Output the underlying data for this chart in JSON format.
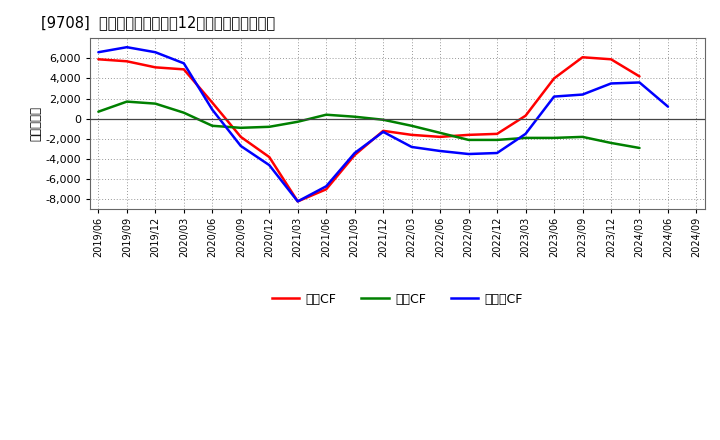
{
  "title": "[9708]  キャッシュフローの12か月移動合計の推移",
  "ylabel": "（百万円）",
  "ylim": [
    -9000,
    8000
  ],
  "yticks": [
    -8000,
    -6000,
    -4000,
    -2000,
    0,
    2000,
    4000,
    6000
  ],
  "background_color": "#ffffff",
  "plot_bg_color": "#ffffff",
  "grid_color": "#999999",
  "x_labels": [
    "2019/06",
    "2019/09",
    "2019/12",
    "2020/03",
    "2020/06",
    "2020/09",
    "2020/12",
    "2021/03",
    "2021/06",
    "2021/09",
    "2021/12",
    "2022/03",
    "2022/06",
    "2022/09",
    "2022/12",
    "2023/03",
    "2023/06",
    "2023/09",
    "2023/12",
    "2024/03",
    "2024/06",
    "2024/09"
  ],
  "series": {
    "営業CF": {
      "color": "#ff0000",
      "values": [
        5900,
        5700,
        5100,
        4900,
        1600,
        -1800,
        -3800,
        -8200,
        -7000,
        -3600,
        -1200,
        -1600,
        -1800,
        -1600,
        -1500,
        300,
        4000,
        6100,
        5900,
        4200,
        null,
        null
      ]
    },
    "投資CF": {
      "color": "#008000",
      "values": [
        700,
        1700,
        1500,
        600,
        -700,
        -900,
        -800,
        -300,
        400,
        200,
        -100,
        -700,
        -1400,
        -2100,
        -2100,
        -1900,
        -1900,
        -1800,
        -2400,
        -2900,
        null,
        null
      ]
    },
    "フリーCF": {
      "color": "#0000ff",
      "values": [
        6600,
        7100,
        6600,
        5500,
        900,
        -2700,
        -4600,
        -8200,
        -6700,
        -3400,
        -1300,
        -2800,
        -3200,
        -3500,
        -3400,
        -1500,
        2200,
        2400,
        3500,
        3600,
        1200,
        null
      ]
    }
  },
  "legend_labels": [
    "営業CF",
    "投資CF",
    "フリーCF"
  ],
  "legend_colors": [
    "#ff0000",
    "#008000",
    "#0000ff"
  ]
}
